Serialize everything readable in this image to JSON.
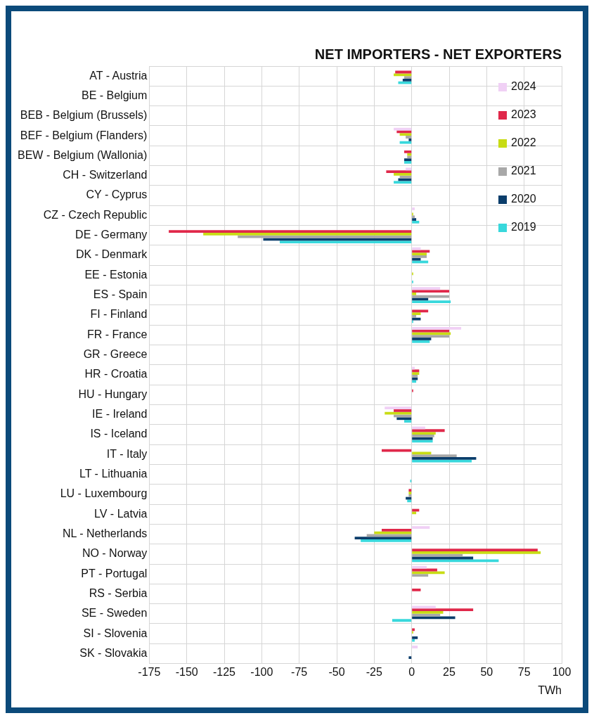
{
  "chart_data": {
    "type": "bar",
    "orientation": "horizontal",
    "title": "NET IMPORTERS - NET EXPORTERS",
    "xlabel": "TWh",
    "categories": [
      "AT - Austria",
      "BE - Belgium",
      "BEB - Belgium (Brussels)",
      "BEF - Belgium (Flanders)",
      "BEW - Belgium (Wallonia)",
      "CH - Switzerland",
      "CY - Cyprus",
      "CZ - Czech Republic",
      "DE - Germany",
      "DK - Denmark",
      "EE - Estonia",
      "ES - Spain",
      "FI - Finland",
      "FR - France",
      "GR - Greece",
      "HR - Croatia",
      "HU - Hungary",
      "IE - Ireland",
      "IS - Iceland",
      "IT - Italy",
      "LT - Lithuania",
      "LU - Luxembourg",
      "LV - Latvia",
      "NL - Netherlands",
      "NO - Norway",
      "PT - Portugal",
      "RS - Serbia",
      "SE - Sweden",
      "SI - Slovenia",
      "SK - Slovakia"
    ],
    "series": [
      {
        "name": "2024",
        "color": "#f0d0f5",
        "values": [
          null,
          null,
          null,
          -12,
          null,
          -4,
          null,
          2,
          null,
          6,
          null,
          19,
          null,
          33,
          null,
          2,
          null,
          -18,
          9,
          null,
          null,
          null,
          null,
          12,
          null,
          10,
          null,
          16,
          null,
          4
        ]
      },
      {
        "name": "2023",
        "color": "#e0284a",
        "values": [
          -11,
          null,
          null,
          -10,
          -5,
          -17,
          null,
          null,
          -162,
          12,
          null,
          25,
          11,
          25,
          null,
          5,
          1,
          -12,
          22,
          -20,
          null,
          -2,
          5,
          -20,
          84,
          17,
          6,
          41,
          2,
          null
        ]
      },
      {
        "name": "2022",
        "color": "#c8dc14",
        "values": [
          -12,
          null,
          null,
          -8,
          -3,
          -12,
          null,
          1,
          -139,
          10,
          1,
          3,
          6,
          26,
          null,
          5,
          null,
          -18,
          16,
          13,
          null,
          -2,
          3,
          -25,
          86,
          22,
          null,
          21,
          1,
          null
        ]
      },
      {
        "name": "2021",
        "color": "#a8a8a8",
        "values": [
          -5,
          null,
          null,
          -4,
          -3,
          -8,
          null,
          2,
          -116,
          10,
          null,
          25,
          3,
          25,
          null,
          4,
          null,
          -12,
          15,
          30,
          null,
          -2,
          null,
          -30,
          34,
          11,
          null,
          19,
          null,
          null
        ]
      },
      {
        "name": "2020",
        "color": "#0a3d6b",
        "values": [
          -6,
          null,
          null,
          -2,
          -5,
          -9,
          null,
          3,
          -99,
          6,
          null,
          11,
          6,
          13,
          null,
          4,
          null,
          -10,
          14,
          43,
          null,
          -4,
          null,
          -38,
          41,
          null,
          null,
          29,
          4,
          -2
        ]
      },
      {
        "name": "2019",
        "color": "#38d8dc",
        "values": [
          -9,
          null,
          null,
          -8,
          -5,
          -12,
          null,
          5,
          -88,
          11,
          1,
          26,
          1,
          12,
          null,
          3,
          null,
          -5,
          14,
          40,
          -1,
          -3,
          null,
          -34,
          58,
          null,
          null,
          -13,
          2,
          null
        ]
      }
    ],
    "xlim": [
      -175,
      100
    ],
    "xticks": [
      -175,
      -150,
      -125,
      -100,
      -75,
      -50,
      -25,
      0,
      25,
      50,
      75,
      100
    ],
    "grid": true,
    "legend": "top right"
  }
}
